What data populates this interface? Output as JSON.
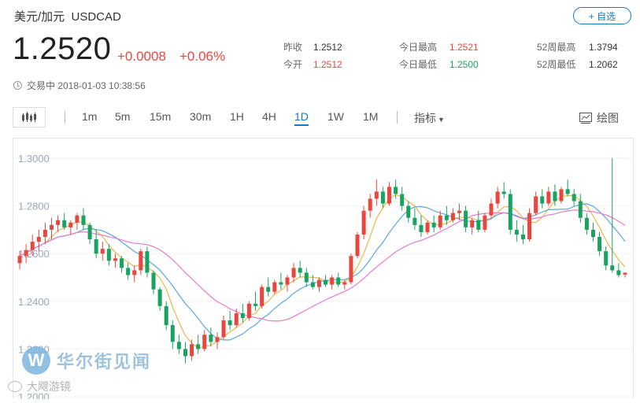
{
  "header": {
    "name": "美元/加元",
    "code": "USDCAD",
    "add_label": "+ 自选",
    "price": "1.2520",
    "change": "+0.0008",
    "change_pct": "+0.06%",
    "status_time": "交易中 2018-01-03 10:38:56"
  },
  "stats": [
    {
      "label": "昨收",
      "value": "1.2512",
      "color": "#333333"
    },
    {
      "label": "今开",
      "value": "1.2512",
      "color": "#e8473f"
    },
    {
      "label": "今日最高",
      "value": "1.2521",
      "color": "#e8473f"
    },
    {
      "label": "今日最低",
      "value": "1.2500",
      "color": "#1aa260"
    },
    {
      "label": "52周最高",
      "value": "1.3794",
      "color": "#333333"
    },
    {
      "label": "52周最低",
      "value": "1.2062",
      "color": "#333333"
    }
  ],
  "toolbar": {
    "timeframes": [
      "1m",
      "5m",
      "15m",
      "30m",
      "1H",
      "4H",
      "1D",
      "1W",
      "1M"
    ],
    "active": "1D",
    "indicator_label": "指标",
    "draw_label": "绘图"
  },
  "watermark": {
    "brand": "华尔街见闻",
    "secondary": "大飕游镜"
  },
  "colors": {
    "up": "#e8473f",
    "down": "#1aa260",
    "accent": "#1478c8",
    "ma_fast": "#e8b84a",
    "ma_mid": "#5aa8dc",
    "ma_slow": "#e57ad0"
  },
  "chart_data": {
    "type": "candlestick",
    "y_ticks": [
      "1.3000",
      "1.2800",
      "1.2600",
      "1.2400",
      "1.2200",
      "1.2000"
    ],
    "ylim": [
      1.2,
      1.3
    ],
    "grid": true,
    "series": [
      {
        "name": "",
        "type": "ohlc",
        "values": [
          [
            1.256,
            1.261,
            1.2535,
            1.259
          ],
          [
            1.259,
            1.264,
            1.256,
            1.2615
          ],
          [
            1.2615,
            1.268,
            1.259,
            1.265
          ],
          [
            1.265,
            1.27,
            1.261,
            1.267
          ],
          [
            1.267,
            1.273,
            1.264,
            1.27
          ],
          [
            1.27,
            1.275,
            1.266,
            1.272
          ],
          [
            1.272,
            1.276,
            1.269,
            1.274
          ],
          [
            1.274,
            1.277,
            1.27,
            1.271
          ],
          [
            1.271,
            1.274,
            1.268,
            1.273
          ],
          [
            1.273,
            1.277,
            1.27,
            1.276
          ],
          [
            1.276,
            1.279,
            1.27,
            1.272
          ],
          [
            1.272,
            1.273,
            1.264,
            1.266
          ],
          [
            1.266,
            1.27,
            1.258,
            1.26
          ],
          [
            1.26,
            1.265,
            1.257,
            1.262
          ],
          [
            1.262,
            1.264,
            1.255,
            1.257
          ],
          [
            1.257,
            1.26,
            1.254,
            1.258
          ],
          [
            1.258,
            1.259,
            1.252,
            1.254
          ],
          [
            1.254,
            1.256,
            1.249,
            1.251
          ],
          [
            1.251,
            1.255,
            1.248,
            1.253
          ],
          [
            1.253,
            1.262,
            1.251,
            1.261
          ],
          [
            1.261,
            1.263,
            1.25,
            1.252
          ],
          [
            1.252,
            1.253,
            1.243,
            1.245
          ],
          [
            1.245,
            1.246,
            1.236,
            1.238
          ],
          [
            1.238,
            1.24,
            1.228,
            1.23
          ],
          [
            1.23,
            1.232,
            1.22,
            1.223
          ],
          [
            1.223,
            1.226,
            1.218,
            1.22
          ],
          [
            1.22,
            1.223,
            1.214,
            1.217
          ],
          [
            1.217,
            1.224,
            1.215,
            1.222
          ],
          [
            1.222,
            1.226,
            1.218,
            1.22
          ],
          [
            1.22,
            1.228,
            1.219,
            1.226
          ],
          [
            1.226,
            1.229,
            1.221,
            1.223
          ],
          [
            1.223,
            1.227,
            1.22,
            1.225
          ],
          [
            1.225,
            1.234,
            1.224,
            1.232
          ],
          [
            1.232,
            1.236,
            1.228,
            1.23
          ],
          [
            1.23,
            1.237,
            1.229,
            1.235
          ],
          [
            1.235,
            1.239,
            1.231,
            1.233
          ],
          [
            1.233,
            1.24,
            1.232,
            1.239
          ],
          [
            1.239,
            1.244,
            1.236,
            1.238
          ],
          [
            1.238,
            1.247,
            1.237,
            1.246
          ],
          [
            1.246,
            1.25,
            1.242,
            1.244
          ],
          [
            1.244,
            1.249,
            1.243,
            1.248
          ],
          [
            1.248,
            1.252,
            1.245,
            1.247
          ],
          [
            1.247,
            1.251,
            1.244,
            1.25
          ],
          [
            1.25,
            1.256,
            1.248,
            1.254
          ],
          [
            1.254,
            1.257,
            1.25,
            1.252
          ],
          [
            1.252,
            1.254,
            1.246,
            1.248
          ],
          [
            1.248,
            1.251,
            1.245,
            1.246
          ],
          [
            1.246,
            1.25,
            1.244,
            1.249
          ],
          [
            1.249,
            1.251,
            1.246,
            1.247
          ],
          [
            1.247,
            1.251,
            1.245,
            1.25
          ],
          [
            1.25,
            1.252,
            1.246,
            1.247
          ],
          [
            1.247,
            1.249,
            1.245,
            1.248
          ],
          [
            1.248,
            1.26,
            1.247,
            1.259
          ],
          [
            1.259,
            1.269,
            1.258,
            1.268
          ],
          [
            1.268,
            1.28,
            1.266,
            1.278
          ],
          [
            1.278,
            1.285,
            1.275,
            1.283
          ],
          [
            1.283,
            1.291,
            1.28,
            1.286
          ],
          [
            1.286,
            1.288,
            1.279,
            1.281
          ],
          [
            1.281,
            1.29,
            1.28,
            1.288
          ],
          [
            1.288,
            1.291,
            1.283,
            1.285
          ],
          [
            1.285,
            1.288,
            1.278,
            1.28
          ],
          [
            1.28,
            1.282,
            1.273,
            1.275
          ],
          [
            1.275,
            1.279,
            1.27,
            1.272
          ],
          [
            1.272,
            1.276,
            1.267,
            1.269
          ],
          [
            1.269,
            1.274,
            1.268,
            1.273
          ],
          [
            1.273,
            1.276,
            1.269,
            1.271
          ],
          [
            1.271,
            1.278,
            1.27,
            1.276
          ],
          [
            1.276,
            1.28,
            1.272,
            1.274
          ],
          [
            1.274,
            1.279,
            1.273,
            1.277
          ],
          [
            1.277,
            1.281,
            1.274,
            1.278
          ],
          [
            1.278,
            1.28,
            1.269,
            1.271
          ],
          [
            1.271,
            1.275,
            1.268,
            1.274
          ],
          [
            1.274,
            1.278,
            1.269,
            1.27
          ],
          [
            1.27,
            1.277,
            1.269,
            1.276
          ],
          [
            1.276,
            1.283,
            1.275,
            1.281
          ],
          [
            1.281,
            1.288,
            1.279,
            1.286
          ],
          [
            1.286,
            1.29,
            1.283,
            1.285
          ],
          [
            1.285,
            1.287,
            1.268,
            1.27
          ],
          [
            1.27,
            1.274,
            1.265,
            1.268
          ],
          [
            1.268,
            1.272,
            1.264,
            1.266
          ],
          [
            1.266,
            1.279,
            1.265,
            1.277
          ],
          [
            1.277,
            1.286,
            1.276,
            1.284
          ],
          [
            1.284,
            1.287,
            1.279,
            1.281
          ],
          [
            1.281,
            1.288,
            1.28,
            1.286
          ],
          [
            1.286,
            1.289,
            1.28,
            1.282
          ],
          [
            1.282,
            1.288,
            1.281,
            1.287
          ],
          [
            1.287,
            1.291,
            1.284,
            1.285
          ],
          [
            1.285,
            1.287,
            1.28,
            1.282
          ],
          [
            1.282,
            1.285,
            1.273,
            1.275
          ],
          [
            1.275,
            1.277,
            1.268,
            1.27
          ],
          [
            1.27,
            1.273,
            1.265,
            1.267
          ],
          [
            1.267,
            1.269,
            1.259,
            1.261
          ],
          [
            1.261,
            1.263,
            1.253,
            1.255
          ],
          [
            1.255,
            1.3,
            1.252,
            1.253
          ],
          [
            1.253,
            1.256,
            1.25,
            1.251
          ],
          [
            1.2512,
            1.2521,
            1.25,
            1.252
          ]
        ]
      }
    ]
  }
}
